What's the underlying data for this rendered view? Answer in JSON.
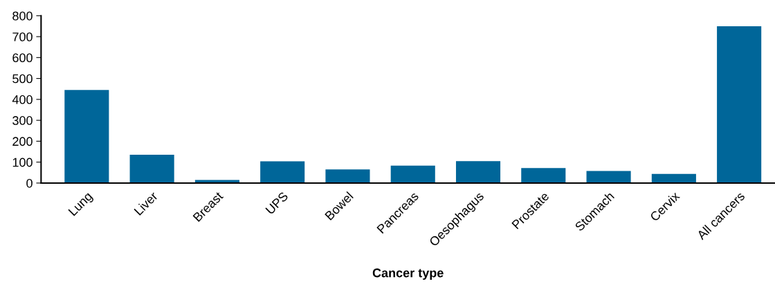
{
  "chart_data": {
    "type": "bar",
    "xlabel": "Cancer type",
    "categories": [
      "Lung",
      "Liver",
      "Breast",
      "UPS",
      "Bowel",
      "Pancreas",
      "Oesophagus",
      "Prostate",
      "Stomach",
      "Cervix",
      "All cancers"
    ],
    "values": [
      445,
      135,
      15,
      104,
      65,
      83,
      105,
      72,
      58,
      44,
      750
    ],
    "color": "#006699",
    "ylim": [
      0,
      800
    ],
    "yticks": [
      0,
      100,
      200,
      300,
      400,
      500,
      600,
      700,
      800
    ],
    "grid": false,
    "legend": false
  }
}
